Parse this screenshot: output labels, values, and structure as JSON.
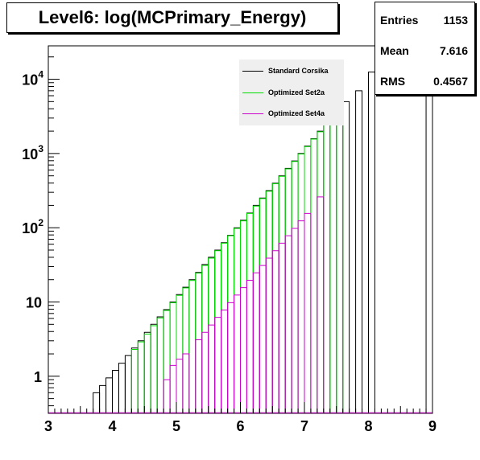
{
  "chart_data": {
    "type": "histogram",
    "title": "Level6:  log(MCPrimary_Energy)",
    "xlim": [
      3,
      9
    ],
    "yscale": "log",
    "ylim_log10": [
      -0.5,
      4.45
    ],
    "bin_width": 0.1,
    "grid": false,
    "x_ticks": [
      {
        "value": 3,
        "label": "3"
      },
      {
        "value": 4,
        "label": "4"
      },
      {
        "value": 5,
        "label": "5"
      },
      {
        "value": 6,
        "label": "6"
      },
      {
        "value": 7,
        "label": "7"
      },
      {
        "value": 8,
        "label": "8"
      },
      {
        "value": 9,
        "label": "9"
      }
    ],
    "y_ticks": [
      {
        "value": 1,
        "base": "1",
        "exp": ""
      },
      {
        "value": 10,
        "base": "10",
        "exp": ""
      },
      {
        "value": 100,
        "base": "10",
        "exp": "2"
      },
      {
        "value": 1000,
        "base": "10",
        "exp": "3"
      },
      {
        "value": 10000,
        "base": "10",
        "exp": "4"
      }
    ],
    "legend_position": "top-right",
    "series": [
      {
        "name": "Standard Corsika",
        "color": "#000000",
        "bins": [
          {
            "x0": 3.7,
            "y": 0.6
          },
          {
            "x0": 3.8,
            "y": 0.75
          },
          {
            "x0": 3.9,
            "y": 0.95
          },
          {
            "x0": 4.0,
            "y": 1.2
          },
          {
            "x0": 4.1,
            "y": 1.5
          },
          {
            "x0": 4.2,
            "y": 1.9
          },
          {
            "x0": 4.3,
            "y": 2.4
          },
          {
            "x0": 4.4,
            "y": 3.0
          },
          {
            "x0": 4.5,
            "y": 3.9
          },
          {
            "x0": 4.6,
            "y": 5.0
          },
          {
            "x0": 4.7,
            "y": 6.3
          },
          {
            "x0": 4.8,
            "y": 7.9
          },
          {
            "x0": 4.9,
            "y": 10
          },
          {
            "x0": 5.0,
            "y": 12.6
          },
          {
            "x0": 5.1,
            "y": 15.8
          },
          {
            "x0": 5.2,
            "y": 20
          },
          {
            "x0": 5.3,
            "y": 25
          },
          {
            "x0": 5.4,
            "y": 32
          },
          {
            "x0": 5.5,
            "y": 40
          },
          {
            "x0": 5.6,
            "y": 50
          },
          {
            "x0": 5.7,
            "y": 63
          },
          {
            "x0": 5.8,
            "y": 79
          },
          {
            "x0": 5.9,
            "y": 100
          },
          {
            "x0": 6.0,
            "y": 126
          },
          {
            "x0": 6.1,
            "y": 158
          },
          {
            "x0": 6.2,
            "y": 200
          },
          {
            "x0": 6.3,
            "y": 251
          },
          {
            "x0": 6.4,
            "y": 316
          },
          {
            "x0": 6.5,
            "y": 398
          },
          {
            "x0": 6.6,
            "y": 501
          },
          {
            "x0": 6.7,
            "y": 631
          },
          {
            "x0": 6.8,
            "y": 794
          },
          {
            "x0": 6.9,
            "y": 1000
          },
          {
            "x0": 7.0,
            "y": 1260
          },
          {
            "x0": 7.1,
            "y": 1580
          },
          {
            "x0": 7.2,
            "y": 2000
          },
          {
            "x0": 7.3,
            "y": 2500
          },
          {
            "x0": 7.4,
            "y": 3160
          },
          {
            "x0": 7.5,
            "y": 3980
          },
          {
            "x0": 7.6,
            "y": 5000
          },
          {
            "x0": 7.8,
            "y": 7000
          },
          {
            "x0": 8.0,
            "y": 12500
          },
          {
            "x0": 8.9,
            "y": 12500
          }
        ]
      },
      {
        "name": "Optimized Set2a",
        "color": "#00dd00",
        "bins": [
          {
            "x0": 4.3,
            "y": 2.3
          },
          {
            "x0": 4.4,
            "y": 2.9
          },
          {
            "x0": 4.5,
            "y": 3.7
          },
          {
            "x0": 4.6,
            "y": 4.8
          },
          {
            "x0": 4.7,
            "y": 6.1
          },
          {
            "x0": 4.8,
            "y": 7.7
          },
          {
            "x0": 4.9,
            "y": 9.8
          },
          {
            "x0": 5.0,
            "y": 12.3
          },
          {
            "x0": 5.1,
            "y": 15.5
          },
          {
            "x0": 5.2,
            "y": 19.5
          },
          {
            "x0": 5.3,
            "y": 24.5
          },
          {
            "x0": 5.4,
            "y": 31
          },
          {
            "x0": 5.5,
            "y": 39
          },
          {
            "x0": 5.6,
            "y": 49
          },
          {
            "x0": 5.7,
            "y": 62
          },
          {
            "x0": 5.8,
            "y": 78
          },
          {
            "x0": 5.9,
            "y": 98
          },
          {
            "x0": 6.0,
            "y": 124
          },
          {
            "x0": 6.1,
            "y": 156
          },
          {
            "x0": 6.2,
            "y": 196
          },
          {
            "x0": 6.3,
            "y": 247
          },
          {
            "x0": 6.4,
            "y": 311
          },
          {
            "x0": 6.5,
            "y": 392
          },
          {
            "x0": 6.6,
            "y": 493
          },
          {
            "x0": 6.7,
            "y": 621
          },
          {
            "x0": 6.8,
            "y": 782
          },
          {
            "x0": 6.9,
            "y": 984
          },
          {
            "x0": 7.0,
            "y": 1240
          },
          {
            "x0": 7.1,
            "y": 1560
          },
          {
            "x0": 7.2,
            "y": 1960
          },
          {
            "x0": 7.3,
            "y": 2470
          },
          {
            "x0": 7.4,
            "y": 3110
          },
          {
            "x0": 7.5,
            "y": 3920
          }
        ]
      },
      {
        "name": "Optimized Set4a",
        "color": "#cc00cc",
        "bins": [
          {
            "x0": 4.8,
            "y": 0.9
          },
          {
            "x0": 4.9,
            "y": 1.4
          },
          {
            "x0": 5.0,
            "y": 1.7
          },
          {
            "x0": 5.1,
            "y": 2.0
          },
          {
            "x0": 5.3,
            "y": 3.1
          },
          {
            "x0": 5.4,
            "y": 3.9
          },
          {
            "x0": 5.5,
            "y": 4.9
          },
          {
            "x0": 5.6,
            "y": 6.2
          },
          {
            "x0": 5.7,
            "y": 7.8
          },
          {
            "x0": 5.8,
            "y": 9.8
          },
          {
            "x0": 5.9,
            "y": 12.4
          },
          {
            "x0": 6.0,
            "y": 15.6
          },
          {
            "x0": 6.1,
            "y": 19.6
          },
          {
            "x0": 6.2,
            "y": 24.7
          },
          {
            "x0": 6.3,
            "y": 31
          },
          {
            "x0": 6.4,
            "y": 39
          },
          {
            "x0": 6.5,
            "y": 49
          },
          {
            "x0": 6.6,
            "y": 62
          },
          {
            "x0": 6.7,
            "y": 78
          },
          {
            "x0": 6.8,
            "y": 98
          },
          {
            "x0": 6.9,
            "y": 124
          },
          {
            "x0": 7.0,
            "y": 156
          },
          {
            "x0": 7.2,
            "y": 260
          }
        ]
      }
    ],
    "stats": [
      {
        "label": "Entries",
        "value": "1153"
      },
      {
        "label": "Mean",
        "value": "7.616"
      },
      {
        "label": "RMS",
        "value": "0.4567"
      }
    ]
  }
}
